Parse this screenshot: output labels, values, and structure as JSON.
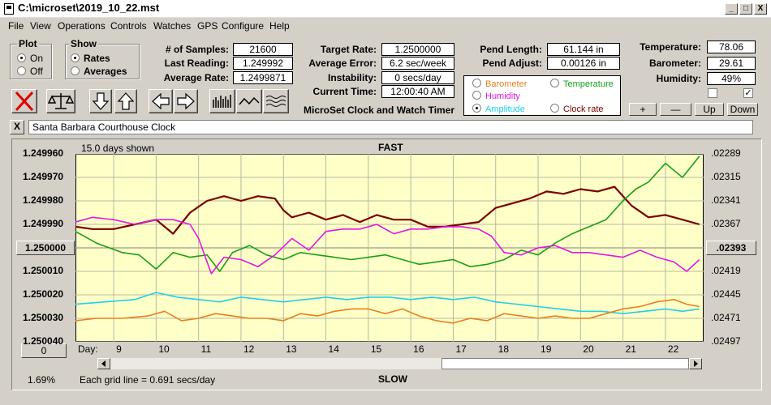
{
  "window": {
    "title": "C:\\microset\\2019_10_22.mst",
    "minimize_glyph": "_",
    "maximize_glyph": "□",
    "close_glyph": "X"
  },
  "menu": [
    "File",
    "View",
    "Operations",
    "Controls",
    "Watches",
    "GPS",
    "Configure",
    "Help"
  ],
  "plot_group": {
    "title": "Plot",
    "options": [
      {
        "label": "On",
        "selected": true
      },
      {
        "label": "Off",
        "selected": false
      }
    ]
  },
  "show_group": {
    "title": "Show",
    "options": [
      {
        "label": "Rates",
        "selected": true
      },
      {
        "label": "Averages",
        "selected": false
      }
    ]
  },
  "stats": {
    "samples_label": "# of Samples:",
    "samples": "21600",
    "last_reading_label": "Last Reading:",
    "last_reading": "1.249992",
    "average_rate_label": "Average Rate:",
    "average_rate": "1.2499871",
    "target_rate_label": "Target Rate:",
    "target_rate": "1.2500000",
    "average_error_label": "Average Error:",
    "average_error": "6.2 sec/week",
    "instability_label": "Instability:",
    "instability": "0 secs/day",
    "current_time_label": "Current Time:",
    "current_time": "12:00:40 AM",
    "pend_length_label": "Pend Length:",
    "pend_length": "61.144 in",
    "pend_adjust_label": "Pend Adjust:",
    "pend_adjust": "0.00126 in",
    "temperature_label": "Temperature:",
    "temperature": "78.06",
    "barometer_label": "Barometer:",
    "barometer": "29.61",
    "humidity_label": "Humidity:",
    "humidity": "49%"
  },
  "app_heading": "MicroSet Clock and Watch Timer",
  "series_options": [
    {
      "label": "Barometer",
      "color": "#e8801c",
      "selected": false
    },
    {
      "label": "Temperature",
      "color": "#18a018",
      "selected": false
    },
    {
      "label": "Humidity",
      "color": "#e018e0",
      "selected": false
    },
    {
      "label": "Clock rate",
      "color": "#7a0000",
      "selected": false
    },
    {
      "label": "Amplitude",
      "color": "#20d0e8",
      "selected": true
    }
  ],
  "adjust_buttons": {
    "plus": "+",
    "minus": "—",
    "up": "Up",
    "down": "Down"
  },
  "checkboxes": [
    {
      "checked": false
    },
    {
      "checked": true
    }
  ],
  "clock_description": "Santa Barbara Courthouse Clock",
  "description_close": "X",
  "chart_data": {
    "type": "line",
    "days_shown": "15.0 days shown",
    "top_label": "FAST",
    "bottom_label": "SLOW",
    "grid_note": "Each grid line = 0.691 secs/day",
    "x_label": "Day:",
    "x_ticks": [
      "9",
      "10",
      "11",
      "12",
      "13",
      "14",
      "15",
      "16",
      "17",
      "18",
      "19",
      "20",
      "21",
      "22"
    ],
    "x_range": [
      8.1,
      22.9
    ],
    "y_left_ticks": [
      "1.249960",
      "1.249970",
      "1.249980",
      "1.249990",
      "1.250000",
      "1.250010",
      "1.250020",
      "1.250030",
      "1.250040"
    ],
    "y_left_range": [
      1.24996,
      1.25004
    ],
    "y_left_center_button": "1.250000",
    "y_left_bottom_button": "0",
    "y_right_ticks": [
      ".02289",
      ".02315",
      ".02341",
      ".02367",
      ".02393",
      ".02419",
      ".02445",
      ".02471",
      ".02497"
    ],
    "y_right_center_button": ".02393",
    "zoom_percent": "1.69%",
    "background": "#ffffc8",
    "series": [
      {
        "name": "Clock rate",
        "color": "#7a0000",
        "x": [
          8.1,
          8.5,
          9.0,
          9.5,
          10.0,
          10.4,
          10.8,
          11.2,
          11.6,
          12.0,
          12.4,
          12.8,
          13.0,
          13.2,
          13.6,
          14.0,
          14.4,
          14.8,
          15.2,
          15.6,
          16.0,
          16.4,
          16.8,
          17.2,
          17.6,
          18.0,
          18.4,
          18.8,
          19.2,
          19.6,
          20.0,
          20.4,
          20.8,
          21.2,
          21.6,
          22.0,
          22.4,
          22.8
        ],
        "y": [
          1.249991,
          1.249992,
          1.249992,
          1.24999,
          1.249988,
          1.249994,
          1.249985,
          1.24998,
          1.249978,
          1.24998,
          1.249978,
          1.249979,
          1.249984,
          1.249987,
          1.249985,
          1.249988,
          1.249986,
          1.249989,
          1.249986,
          1.249988,
          1.249988,
          1.249991,
          1.249991,
          1.24999,
          1.249989,
          1.249983,
          1.249981,
          1.249979,
          1.249976,
          1.249977,
          1.249975,
          1.249976,
          1.249974,
          1.249982,
          1.249987,
          1.249986,
          1.249988,
          1.24999
        ]
      },
      {
        "name": "Temperature",
        "color": "#18a018",
        "x": [
          8.1,
          8.6,
          9.2,
          9.6,
          10.0,
          10.4,
          10.8,
          11.2,
          11.5,
          11.8,
          12.2,
          12.6,
          13.0,
          13.4,
          13.8,
          14.2,
          14.6,
          15.0,
          15.4,
          15.8,
          16.2,
          16.6,
          17.0,
          17.4,
          17.8,
          18.2,
          18.6,
          19.0,
          19.4,
          19.8,
          20.2,
          20.6,
          21.0,
          21.3,
          21.6,
          22.0,
          22.4,
          22.8
        ],
        "y": [
          1.249993,
          1.249998,
          1.250002,
          1.250003,
          1.250009,
          1.250002,
          1.250004,
          1.250003,
          1.25001,
          1.250002,
          1.249999,
          1.250003,
          1.250005,
          1.250002,
          1.250003,
          1.250004,
          1.250005,
          1.250004,
          1.250003,
          1.250005,
          1.250007,
          1.250006,
          1.250005,
          1.250008,
          1.250007,
          1.250005,
          1.250001,
          1.250003,
          1.249998,
          1.249994,
          1.249991,
          1.249988,
          1.24998,
          1.249975,
          1.249972,
          1.249964,
          1.24997,
          1.249961
        ]
      },
      {
        "name": "Humidity",
        "color": "#e018e0",
        "x": [
          8.1,
          8.5,
          9.0,
          9.5,
          10.0,
          10.4,
          10.8,
          11.0,
          11.3,
          11.6,
          12.0,
          12.4,
          12.8,
          13.2,
          13.6,
          14.0,
          14.4,
          14.8,
          15.2,
          15.6,
          16.0,
          16.4,
          16.8,
          17.2,
          17.6,
          17.9,
          18.2,
          18.6,
          19.0,
          19.4,
          19.8,
          20.2,
          20.6,
          21.0,
          21.4,
          21.8,
          22.2,
          22.5,
          22.8
        ],
        "y": [
          1.249989,
          1.249987,
          1.249988,
          1.24999,
          1.249988,
          1.249988,
          1.24999,
          1.249996,
          1.250011,
          1.250004,
          1.250005,
          1.250008,
          1.250003,
          1.249996,
          1.250001,
          1.249993,
          1.249992,
          1.249992,
          1.24999,
          1.249994,
          1.249992,
          1.249992,
          1.249991,
          1.249991,
          1.249992,
          1.249995,
          1.250002,
          1.250003,
          1.25,
          1.249999,
          1.250002,
          1.250002,
          1.250003,
          1.250004,
          1.250001,
          1.250004,
          1.250006,
          1.25001,
          1.250005
        ]
      },
      {
        "name": "Amplitude",
        "color": "#20d0e8",
        "x": [
          8.1,
          8.8,
          9.5,
          10.0,
          10.5,
          11.0,
          11.5,
          12.0,
          12.5,
          13.0,
          13.5,
          14.0,
          14.5,
          15.0,
          15.5,
          16.0,
          16.5,
          17.0,
          17.5,
          18.0,
          18.5,
          19.0,
          19.5,
          20.0,
          20.5,
          21.0,
          21.5,
          22.0,
          22.4,
          22.8
        ],
        "y": [
          1.250024,
          1.250023,
          1.250022,
          1.250019,
          1.250021,
          1.250022,
          1.250023,
          1.250021,
          1.250022,
          1.250023,
          1.250022,
          1.250021,
          1.250022,
          1.250021,
          1.250021,
          1.250022,
          1.250021,
          1.250022,
          1.250021,
          1.250023,
          1.250024,
          1.250025,
          1.250026,
          1.250027,
          1.250027,
          1.250028,
          1.250027,
          1.250026,
          1.250027,
          1.250026
        ]
      },
      {
        "name": "Barometer",
        "color": "#e8801c",
        "x": [
          8.1,
          8.6,
          9.2,
          9.8,
          10.2,
          10.6,
          11.0,
          11.4,
          11.8,
          12.2,
          12.6,
          13.0,
          13.4,
          13.8,
          14.2,
          14.6,
          15.0,
          15.4,
          15.8,
          16.2,
          16.6,
          17.0,
          17.4,
          17.8,
          18.2,
          18.6,
          19.0,
          19.4,
          19.8,
          20.2,
          20.6,
          21.0,
          21.4,
          21.8,
          22.2,
          22.5,
          22.8
        ],
        "y": [
          1.250031,
          1.25003,
          1.25003,
          1.250029,
          1.250027,
          1.250031,
          1.25003,
          1.250028,
          1.250029,
          1.25003,
          1.25003,
          1.250031,
          1.250028,
          1.250029,
          1.250027,
          1.250026,
          1.250026,
          1.250028,
          1.250026,
          1.250029,
          1.250031,
          1.250032,
          1.25003,
          1.250031,
          1.250028,
          1.250029,
          1.25003,
          1.250029,
          1.25003,
          1.25003,
          1.250028,
          1.250026,
          1.250025,
          1.250023,
          1.250022,
          1.250024,
          1.250025
        ]
      }
    ]
  }
}
